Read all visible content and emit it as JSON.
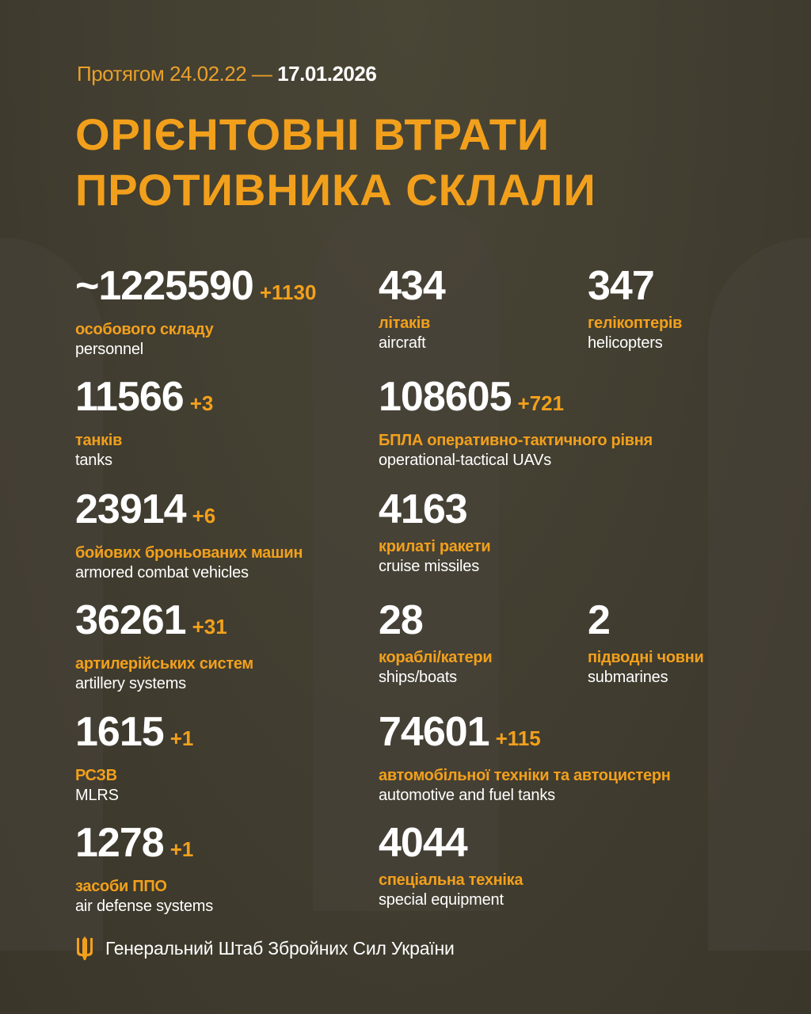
{
  "header": {
    "period_prefix": "Протягом 24.02.22 —",
    "period_end": "17.01.2026",
    "title_line1": "ОРІЄНТОВНІ ВТРАТИ",
    "title_line2": "ПРОТИВНИКА СКЛАЛИ"
  },
  "stats": [
    {
      "value": "~1225590",
      "delta": "+1130",
      "ua": "особового складу",
      "en": "personnel"
    },
    {
      "value": "434",
      "delta": "",
      "ua": "літаків",
      "en": "aircraft"
    },
    {
      "value": "347",
      "delta": "",
      "ua": "гелікоптерів",
      "en": "helicopters"
    },
    {
      "value": "11566",
      "delta": "+3",
      "ua": "танків",
      "en": "tanks"
    },
    {
      "value": "108605",
      "delta": "+721",
      "ua": "БПЛА оперативно-тактичного рівня",
      "en": "operational-tactical UAVs"
    },
    {
      "value": "23914",
      "delta": "+6",
      "ua": "бойових броньованих машин",
      "en": "armored combat vehicles"
    },
    {
      "value": "4163",
      "delta": "",
      "ua": "крилаті ракети",
      "en": "cruise missiles"
    },
    {
      "value": "36261",
      "delta": "+31",
      "ua": "артилерійських систем",
      "en": "artillery systems"
    },
    {
      "value": "28",
      "delta": "",
      "ua": "кораблі/катери",
      "en": "ships/boats"
    },
    {
      "value": "2",
      "delta": "",
      "ua": "підводні човни",
      "en": "submarines"
    },
    {
      "value": "1615",
      "delta": "+1",
      "ua": "РСЗВ",
      "en": "MLRS"
    },
    {
      "value": "74601",
      "delta": "+115",
      "ua": "автомобільної техніки та автоцистерн",
      "en": "automotive and fuel tanks"
    },
    {
      "value": "1278",
      "delta": "+1",
      "ua": "засоби ППО",
      "en": "air defense systems"
    },
    {
      "value": "4044",
      "delta": "",
      "ua": "спеціальна техніка",
      "en": "special equipment"
    }
  ],
  "footer": {
    "text": "Генеральний Штаб Збройних Сил України",
    "icon": "trident-icon"
  },
  "colors": {
    "accent": "#f2a01c",
    "background": "#403c2f",
    "text": "#ffffff"
  }
}
